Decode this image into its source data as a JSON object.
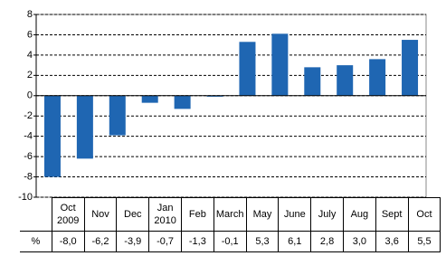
{
  "chart_data": {
    "type": "bar",
    "categories": [
      "Oct 2009",
      "Nov",
      "Dec",
      "Jan 2010",
      "Feb",
      "March",
      "May",
      "June",
      "July",
      "Aug",
      "Sept",
      "Oct"
    ],
    "values": [
      -8.0,
      -6.2,
      -3.9,
      -0.7,
      -1.3,
      -0.1,
      5.3,
      6.1,
      2.8,
      3.0,
      3.6,
      5.5
    ],
    "value_labels": [
      "-8,0",
      "-6,2",
      "-3,9",
      "-0,7",
      "-1,3",
      "-0,1",
      "5,3",
      "6,1",
      "2,8",
      "3,0",
      "3,6",
      "5,5"
    ],
    "row_label": "%",
    "color": "#1f66b2",
    "ylim": [
      -10,
      8
    ],
    "yticks": [
      -10,
      -8,
      -6,
      -4,
      -2,
      0,
      2,
      4,
      6,
      8
    ],
    "grid": true
  }
}
